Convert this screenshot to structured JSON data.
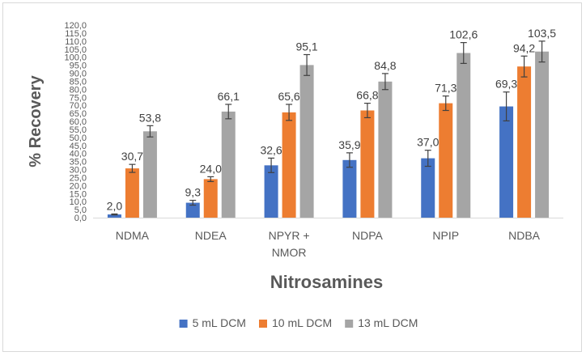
{
  "chart_data": {
    "type": "bar",
    "xlabel": "Nitrosamines",
    "ylabel": "% Recovery",
    "ylim": [
      0,
      120
    ],
    "ytick_step": 5,
    "ytick_labels": [
      "0,0",
      "5,0",
      "10,0",
      "15,0",
      "20,0",
      "25,0",
      "30,0",
      "35,0",
      "40,0",
      "45,0",
      "50,0",
      "55,0",
      "60,0",
      "65,0",
      "70,0",
      "75,0",
      "80,0",
      "85,0",
      "90,0",
      "95,0",
      "100,0",
      "105,0",
      "110,0",
      "115,0",
      "120,0"
    ],
    "grid": false,
    "legend": "bottom",
    "categories": [
      {
        "id": "NDMA",
        "lines": [
          "NDMA"
        ]
      },
      {
        "id": "NDEA",
        "lines": [
          "NDEA"
        ]
      },
      {
        "id": "NPYR+NMOR",
        "lines": [
          "NPYR +",
          "NMOR"
        ]
      },
      {
        "id": "NDPA",
        "lines": [
          "NDPA"
        ]
      },
      {
        "id": "NPIP",
        "lines": [
          "NPIP"
        ]
      },
      {
        "id": "NDBA",
        "lines": [
          "NDBA"
        ]
      }
    ],
    "series": [
      {
        "name": "5 mL DCM",
        "color": "#4472C4",
        "values": [
          2.0,
          9.3,
          32.6,
          35.9,
          37.0,
          69.3
        ],
        "labels": [
          "2,0",
          "9,3",
          "32,6",
          "35,9",
          "37,0",
          "69,3"
        ],
        "errors": [
          0.3,
          1.5,
          4.5,
          4.5,
          5.0,
          9.0
        ]
      },
      {
        "name": "10 mL DCM",
        "color": "#ED7D31",
        "values": [
          30.7,
          24.0,
          65.6,
          66.8,
          71.3,
          94.2
        ],
        "labels": [
          "30,7",
          "24,0",
          "65,6",
          "66,8",
          "71,3",
          "94,2"
        ],
        "errors": [
          2.5,
          1.5,
          5.0,
          4.5,
          4.5,
          6.5
        ]
      },
      {
        "name": "13 mL DCM",
        "color": "#A5A5A5",
        "values": [
          53.8,
          66.1,
          95.1,
          84.8,
          102.6,
          103.5
        ],
        "labels": [
          "53,8",
          "66,1",
          "95,1",
          "84,8",
          "102,6",
          "103,5"
        ],
        "errors": [
          3.5,
          4.5,
          6.5,
          5.0,
          6.5,
          6.5
        ]
      }
    ]
  }
}
